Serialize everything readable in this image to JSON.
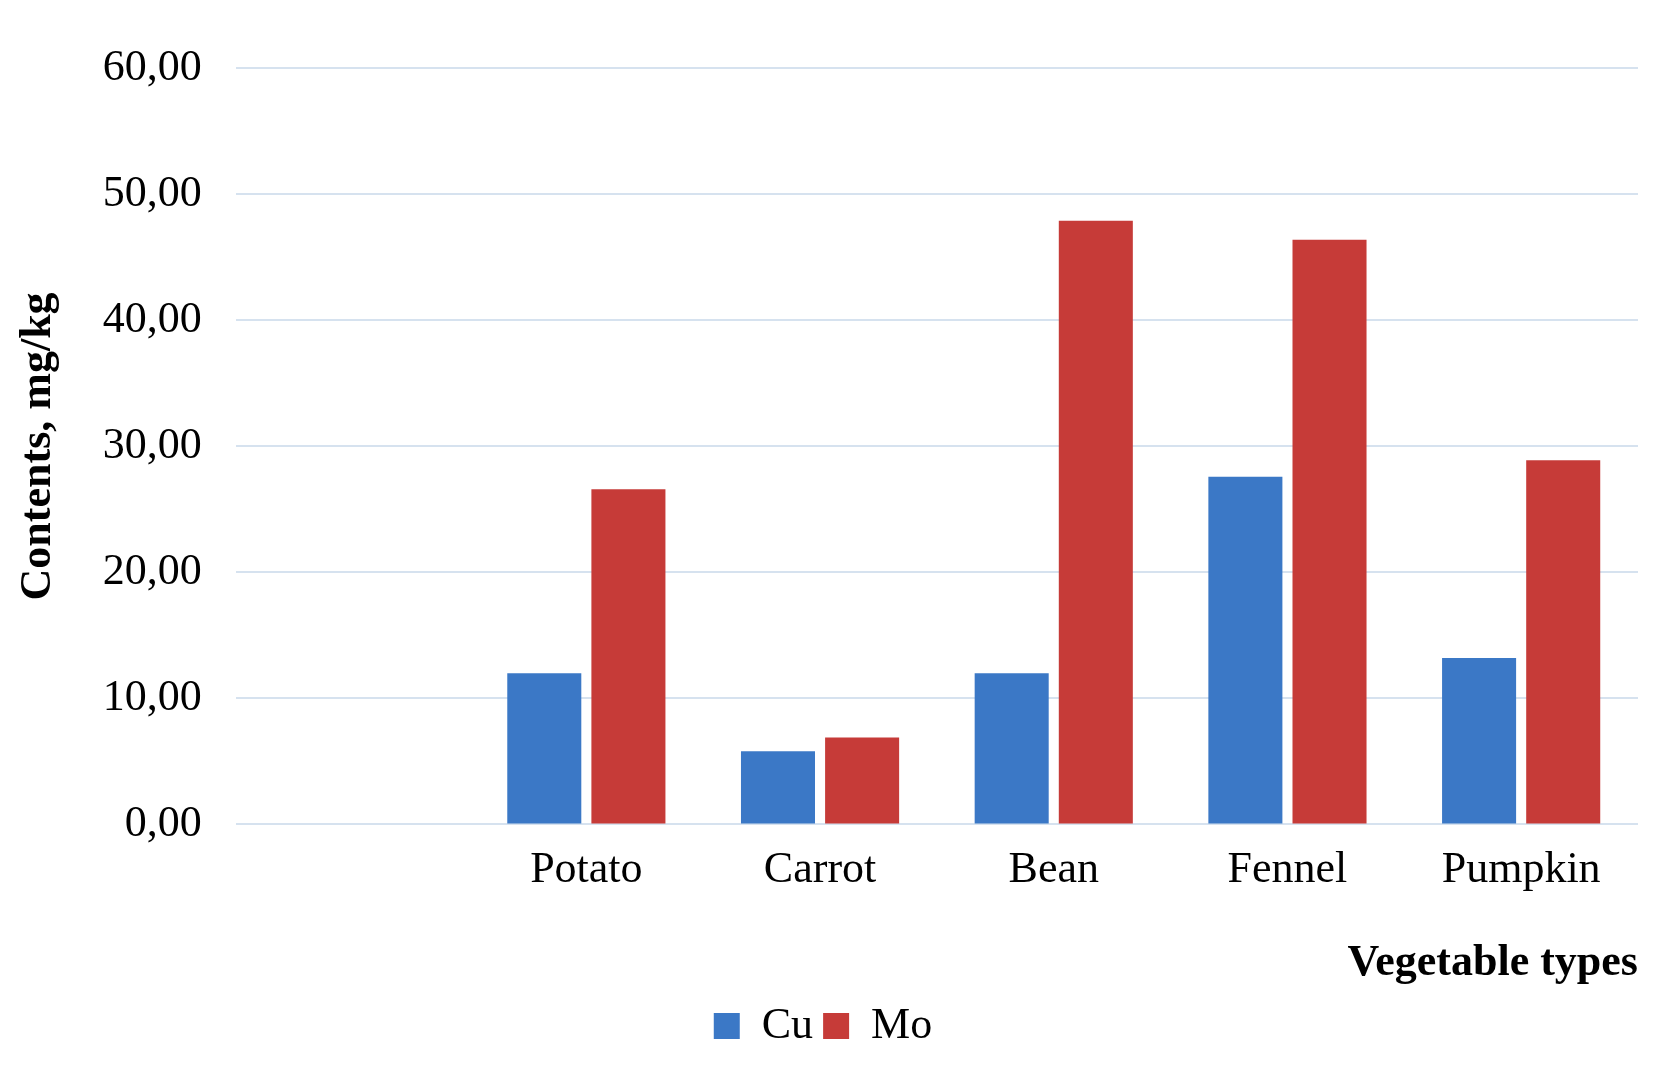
{
  "chart_data": {
    "type": "bar",
    "xlabel": "Vegetable types",
    "ylabel": "Contents, mg/kg",
    "categories": [
      null,
      "Potato",
      "Carrot",
      "Bean",
      "Fennel",
      "Pumpkin"
    ],
    "series": [
      {
        "name": "Cu",
        "color": "#3b78c6",
        "values": [
          null,
          12.0,
          5.8,
          12.0,
          27.6,
          13.2
        ]
      },
      {
        "name": "Mo",
        "color": "#c63b38",
        "values": [
          null,
          26.6,
          6.9,
          47.9,
          46.4,
          28.9
        ]
      }
    ],
    "ylim": [
      0,
      60
    ],
    "yticks": [
      {
        "value": 0,
        "label": "0,00"
      },
      {
        "value": 10,
        "label": "10,00"
      },
      {
        "value": 20,
        "label": "20,00"
      },
      {
        "value": 30,
        "label": "30,00"
      },
      {
        "value": 40,
        "label": "40,00"
      },
      {
        "value": 50,
        "label": "50,00"
      },
      {
        "value": 60,
        "label": "60,00"
      }
    ],
    "grid": "y",
    "legend": "bottom"
  }
}
